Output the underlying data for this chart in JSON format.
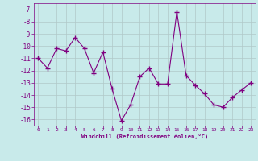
{
  "x": [
    0,
    1,
    2,
    3,
    4,
    5,
    6,
    7,
    8,
    9,
    10,
    11,
    12,
    13,
    14,
    15,
    16,
    17,
    18,
    19,
    20,
    21,
    22,
    23
  ],
  "y": [
    -11.0,
    -11.8,
    -10.2,
    -10.4,
    -9.3,
    -10.2,
    -12.2,
    -10.5,
    -13.5,
    -16.1,
    -14.8,
    -12.5,
    -11.8,
    -13.1,
    -13.1,
    -7.2,
    -12.4,
    -13.2,
    -13.9,
    -14.8,
    -15.0,
    -14.2,
    -13.6,
    -13.0
  ],
  "line_color": "#800080",
  "marker": "+",
  "marker_color": "#800080",
  "bg_color": "#c8eaea",
  "grid_color": "#b0c8c8",
  "xlabel": "Windchill (Refroidissement éolien,°C)",
  "xlabel_color": "#800080",
  "tick_color": "#800080",
  "ylim": [
    -16.5,
    -6.5
  ],
  "yticks": [
    -7,
    -8,
    -9,
    -10,
    -11,
    -12,
    -13,
    -14,
    -15,
    -16
  ],
  "xlim": [
    -0.5,
    23.5
  ],
  "xticks": [
    0,
    1,
    2,
    3,
    4,
    5,
    6,
    7,
    8,
    9,
    10,
    11,
    12,
    13,
    14,
    15,
    16,
    17,
    18,
    19,
    20,
    21,
    22,
    23
  ]
}
